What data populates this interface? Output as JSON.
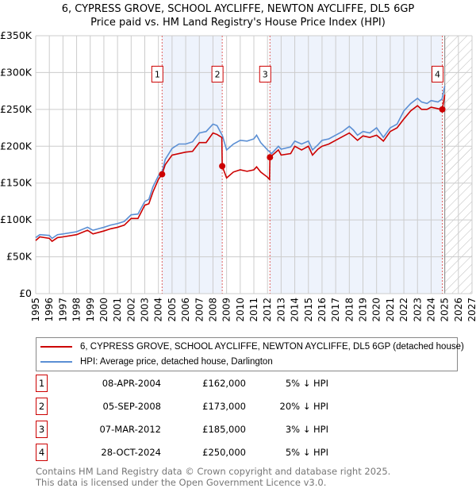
{
  "title": "6, CYPRESS GROVE, SCHOOL AYCLIFFE, NEWTON AYCLIFFE, DL5 6GP",
  "subtitle": "Price paid vs. HM Land Registry's House Price Index (HPI)",
  "chart_data": {
    "type": "line",
    "xlim": [
      1995,
      2027
    ],
    "ylim": [
      0,
      350000
    ],
    "xticks": [
      "1995",
      "1996",
      "1997",
      "1998",
      "1999",
      "2000",
      "2001",
      "2002",
      "2003",
      "2004",
      "2005",
      "2006",
      "2007",
      "2008",
      "2009",
      "2010",
      "2011",
      "2012",
      "2013",
      "2014",
      "2015",
      "2016",
      "2017",
      "2018",
      "2019",
      "2020",
      "2021",
      "2022",
      "2023",
      "2024",
      "2025",
      "2026",
      "2027"
    ],
    "yticks": [
      {
        "v": 0,
        "l": "£0"
      },
      {
        "v": 50000,
        "l": "£50K"
      },
      {
        "v": 100000,
        "l": "£100K"
      },
      {
        "v": 150000,
        "l": "£150K"
      },
      {
        "v": 200000,
        "l": "£200K"
      },
      {
        "v": 250000,
        "l": "£250K"
      },
      {
        "v": 300000,
        "l": "£300K"
      },
      {
        "v": 350000,
        "l": "£350K"
      }
    ],
    "shaded": [
      [
        2004.27,
        2008.68
      ],
      [
        2012.18,
        2024.82
      ]
    ],
    "forecast_from": 2025.0,
    "colors": {
      "property": "#cc0000",
      "hpi": "#5b8fd4",
      "shade": "#eef3fc"
    },
    "series": [
      {
        "name": "6, CYPRESS GROVE, SCHOOL AYCLIFFE, NEWTON AYCLIFFE, DL5 6GP (detached house)",
        "key": "property",
        "points": [
          [
            1995,
            72
          ],
          [
            1995.3,
            77
          ],
          [
            1996,
            75
          ],
          [
            1996.2,
            71
          ],
          [
            1996.6,
            76
          ],
          [
            1997,
            77
          ],
          [
            1998,
            80
          ],
          [
            1998.8,
            86
          ],
          [
            1999.2,
            81
          ],
          [
            2000,
            85
          ],
          [
            2000.5,
            88
          ],
          [
            2001,
            90
          ],
          [
            2001.5,
            93
          ],
          [
            2002,
            102
          ],
          [
            2002.5,
            102
          ],
          [
            2003,
            120
          ],
          [
            2003.3,
            122
          ],
          [
            2003.6,
            138
          ],
          [
            2004,
            155
          ],
          [
            2004.27,
            162
          ],
          [
            2004.5,
            175
          ],
          [
            2005,
            188
          ],
          [
            2005.5,
            190
          ],
          [
            2006,
            192
          ],
          [
            2006.5,
            193
          ],
          [
            2007,
            205
          ],
          [
            2007.5,
            205
          ],
          [
            2008,
            218
          ],
          [
            2008.3,
            216
          ],
          [
            2008.65,
            212
          ],
          [
            2008.68,
            173
          ],
          [
            2009,
            157
          ],
          [
            2009.5,
            165
          ],
          [
            2010,
            168
          ],
          [
            2010.5,
            166
          ],
          [
            2011,
            168
          ],
          [
            2011.2,
            172
          ],
          [
            2011.5,
            165
          ],
          [
            2012,
            158
          ],
          [
            2012.15,
            155
          ],
          [
            2012.18,
            185
          ],
          [
            2012.8,
            195
          ],
          [
            2013,
            188
          ],
          [
            2013.7,
            190
          ],
          [
            2014,
            200
          ],
          [
            2014.5,
            195
          ],
          [
            2015,
            200
          ],
          [
            2015.3,
            188
          ],
          [
            2015.7,
            196
          ],
          [
            2016,
            200
          ],
          [
            2016.5,
            203
          ],
          [
            2017,
            208
          ],
          [
            2017.5,
            213
          ],
          [
            2018,
            218
          ],
          [
            2018.3,
            213
          ],
          [
            2018.6,
            208
          ],
          [
            2019,
            214
          ],
          [
            2019.5,
            212
          ],
          [
            2020,
            215
          ],
          [
            2020.5,
            207
          ],
          [
            2021,
            220
          ],
          [
            2021.5,
            225
          ],
          [
            2022,
            237
          ],
          [
            2022.5,
            248
          ],
          [
            2023,
            255
          ],
          [
            2023.3,
            250
          ],
          [
            2023.7,
            250
          ],
          [
            2024,
            253
          ],
          [
            2024.5,
            251
          ],
          [
            2024.82,
            250
          ],
          [
            2025,
            270
          ]
        ]
      },
      {
        "name": "HPI: Average price, detached house, Darlington",
        "key": "hpi",
        "points": [
          [
            1995,
            76
          ],
          [
            1995.3,
            80
          ],
          [
            1996,
            79
          ],
          [
            1996.2,
            75
          ],
          [
            1996.6,
            80
          ],
          [
            1997,
            81
          ],
          [
            1998,
            84
          ],
          [
            1998.8,
            90
          ],
          [
            1999.2,
            86
          ],
          [
            2000,
            90
          ],
          [
            2000.5,
            93
          ],
          [
            2001,
            95
          ],
          [
            2001.5,
            98
          ],
          [
            2002,
            107
          ],
          [
            2002.5,
            108
          ],
          [
            2003,
            125
          ],
          [
            2003.3,
            128
          ],
          [
            2003.6,
            145
          ],
          [
            2004,
            160
          ],
          [
            2004.3,
            167
          ],
          [
            2004.5,
            182
          ],
          [
            2005,
            197
          ],
          [
            2005.5,
            203
          ],
          [
            2006,
            203
          ],
          [
            2006.5,
            206
          ],
          [
            2007,
            218
          ],
          [
            2007.5,
            220
          ],
          [
            2008,
            230
          ],
          [
            2008.3,
            228
          ],
          [
            2008.7,
            214
          ],
          [
            2009,
            195
          ],
          [
            2009.5,
            203
          ],
          [
            2010,
            208
          ],
          [
            2010.5,
            207
          ],
          [
            2011,
            210
          ],
          [
            2011.2,
            215
          ],
          [
            2011.5,
            205
          ],
          [
            2012,
            195
          ],
          [
            2012.3,
            190
          ],
          [
            2012.8,
            200
          ],
          [
            2013,
            196
          ],
          [
            2013.7,
            199
          ],
          [
            2014,
            207
          ],
          [
            2014.5,
            203
          ],
          [
            2015,
            207
          ],
          [
            2015.3,
            195
          ],
          [
            2015.7,
            202
          ],
          [
            2016,
            208
          ],
          [
            2016.5,
            210
          ],
          [
            2017,
            215
          ],
          [
            2017.5,
            220
          ],
          [
            2018,
            227
          ],
          [
            2018.3,
            222
          ],
          [
            2018.6,
            215
          ],
          [
            2019,
            220
          ],
          [
            2019.5,
            218
          ],
          [
            2020,
            225
          ],
          [
            2020.5,
            212
          ],
          [
            2021,
            225
          ],
          [
            2021.5,
            230
          ],
          [
            2022,
            248
          ],
          [
            2022.5,
            258
          ],
          [
            2023,
            265
          ],
          [
            2023.3,
            260
          ],
          [
            2023.7,
            258
          ],
          [
            2024,
            262
          ],
          [
            2024.5,
            260
          ],
          [
            2024.8,
            264
          ],
          [
            2025,
            282
          ]
        ]
      }
    ],
    "sales": [
      {
        "label": "1",
        "x": 2004.27,
        "y": 162
      },
      {
        "label": "2",
        "x": 2008.68,
        "y": 173
      },
      {
        "label": "3",
        "x": 2012.18,
        "y": 185
      },
      {
        "label": "4",
        "x": 2024.82,
        "y": 250
      }
    ]
  },
  "legend": {
    "property": "6, CYPRESS GROVE, SCHOOL AYCLIFFE, NEWTON AYCLIFFE, DL5 6GP (detached house)",
    "hpi": "HPI: Average price, detached house, Darlington"
  },
  "transactions": [
    {
      "num": "1",
      "date": "08-APR-2004",
      "price": "£162,000",
      "pct": "5% ↓ HPI"
    },
    {
      "num": "2",
      "date": "05-SEP-2008",
      "price": "£173,000",
      "pct": "20% ↓ HPI"
    },
    {
      "num": "3",
      "date": "07-MAR-2012",
      "price": "£185,000",
      "pct": "3% ↓ HPI"
    },
    {
      "num": "4",
      "date": "28-OCT-2024",
      "price": "£250,000",
      "pct": "5% ↓ HPI"
    }
  ],
  "footer": [
    "Contains HM Land Registry data © Crown copyright and database right 2025.",
    "This data is licensed under the Open Government Licence v3.0."
  ]
}
